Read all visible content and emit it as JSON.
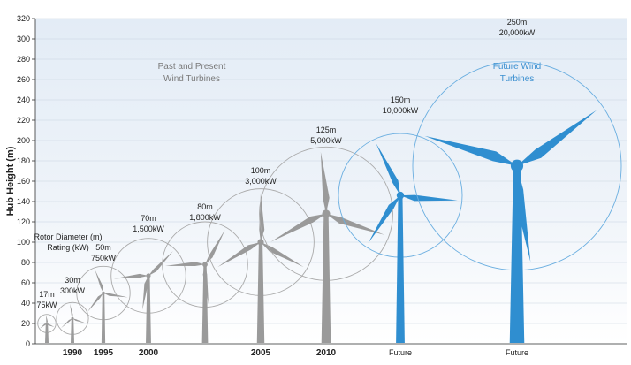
{
  "chart_data": {
    "type": "scatter",
    "title": "",
    "ylabel": "Hub Height (m)",
    "ylim": [
      0,
      320
    ],
    "yticks": [
      0,
      20,
      40,
      60,
      80,
      100,
      120,
      140,
      160,
      180,
      200,
      220,
      240,
      260,
      280,
      300,
      320
    ],
    "grid": true,
    "annotations": {
      "rotor_rating_caption": [
        "Rotor Diameter (m)",
        "Rating (kW)"
      ],
      "past_present": [
        "Past and Present",
        "Wind Turbines"
      ],
      "future": [
        "Future Wind",
        "Turbines"
      ]
    },
    "colors": {
      "past": "#9a9a9a",
      "future": "#2f8ed0",
      "plot_bg_top": "#e3ecf6",
      "plot_bg_bottom": "#ffffff"
    },
    "turbines": [
      {
        "x_label": "",
        "rotor_diameter": "17m",
        "rating": "75kW",
        "hub_height": 20,
        "era": "past"
      },
      {
        "x_label": "1990",
        "rotor_diameter": "30m",
        "rating": "300kW",
        "hub_height": 25,
        "era": "past"
      },
      {
        "x_label": "1995",
        "rotor_diameter": "50m",
        "rating": "750kW",
        "hub_height": 50,
        "era": "past"
      },
      {
        "x_label": "2000",
        "rotor_diameter": "70m",
        "rating": "1,500kW",
        "hub_height": 67,
        "era": "past"
      },
      {
        "x_label": "",
        "rotor_diameter": "80m",
        "rating": "1,800kW",
        "hub_height": 78,
        "era": "past"
      },
      {
        "x_label": "2005",
        "rotor_diameter": "100m",
        "rating": "3,000kW",
        "hub_height": 100,
        "era": "past"
      },
      {
        "x_label": "2010",
        "rotor_diameter": "125m",
        "rating": "5,000kW",
        "hub_height": 128,
        "era": "past"
      },
      {
        "x_label": "Future",
        "rotor_diameter": "150m",
        "rating": "10,000kW",
        "hub_height": 146,
        "era": "future"
      },
      {
        "x_label": "Future",
        "rotor_diameter": "250m",
        "rating": "20,000kW",
        "hub_height": 175,
        "era": "future"
      }
    ]
  }
}
